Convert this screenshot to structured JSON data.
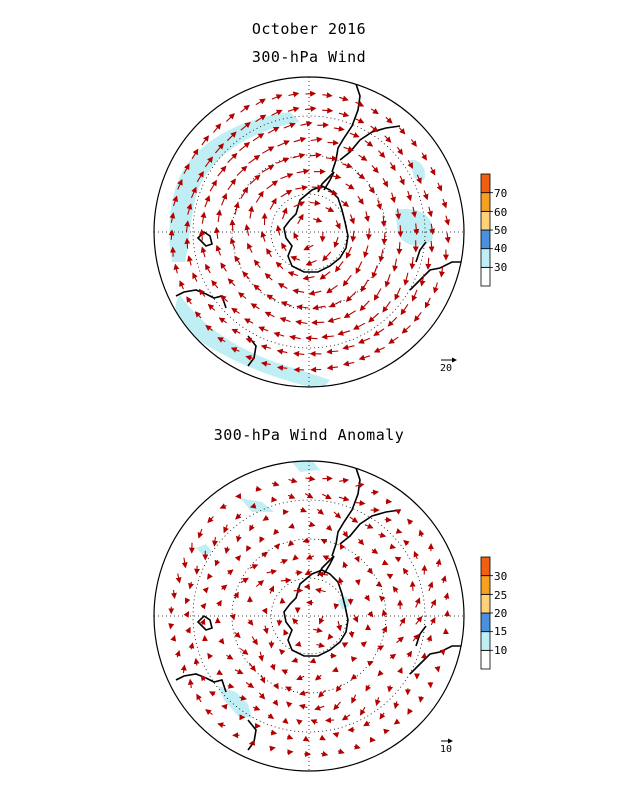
{
  "titles": {
    "date": "October 2016",
    "top": "300-hPa Wind",
    "bottom": "300-hPa Wind Anomaly"
  },
  "colors": {
    "arrow": "#b40000",
    "coast": "#000000",
    "shade_light": "#bfeff4",
    "shade_blue": "#4a90e0",
    "shade_yellow": "#ffd27a",
    "shade_orange": "#f7a020",
    "shade_dark_orange": "#f06010"
  },
  "top_panel": {
    "colorbar_ticks": [
      "30",
      "40",
      "50",
      "60",
      "70"
    ],
    "colorbar_colors": [
      "#ffffff",
      "#bfeff4",
      "#4a90e0",
      "#ffd27a",
      "#f7a020",
      "#f06010"
    ],
    "reference_vector": "20",
    "flow_pattern": "circumpolar westerlies"
  },
  "bottom_panel": {
    "colorbar_ticks": [
      "10",
      "15",
      "20",
      "25",
      "30"
    ],
    "colorbar_colors": [
      "#ffffff",
      "#bfeff4",
      "#4a90e0",
      "#ffd27a",
      "#f7a020",
      "#f06010"
    ],
    "reference_vector": "10",
    "flow_pattern": "anomaly circulation"
  }
}
